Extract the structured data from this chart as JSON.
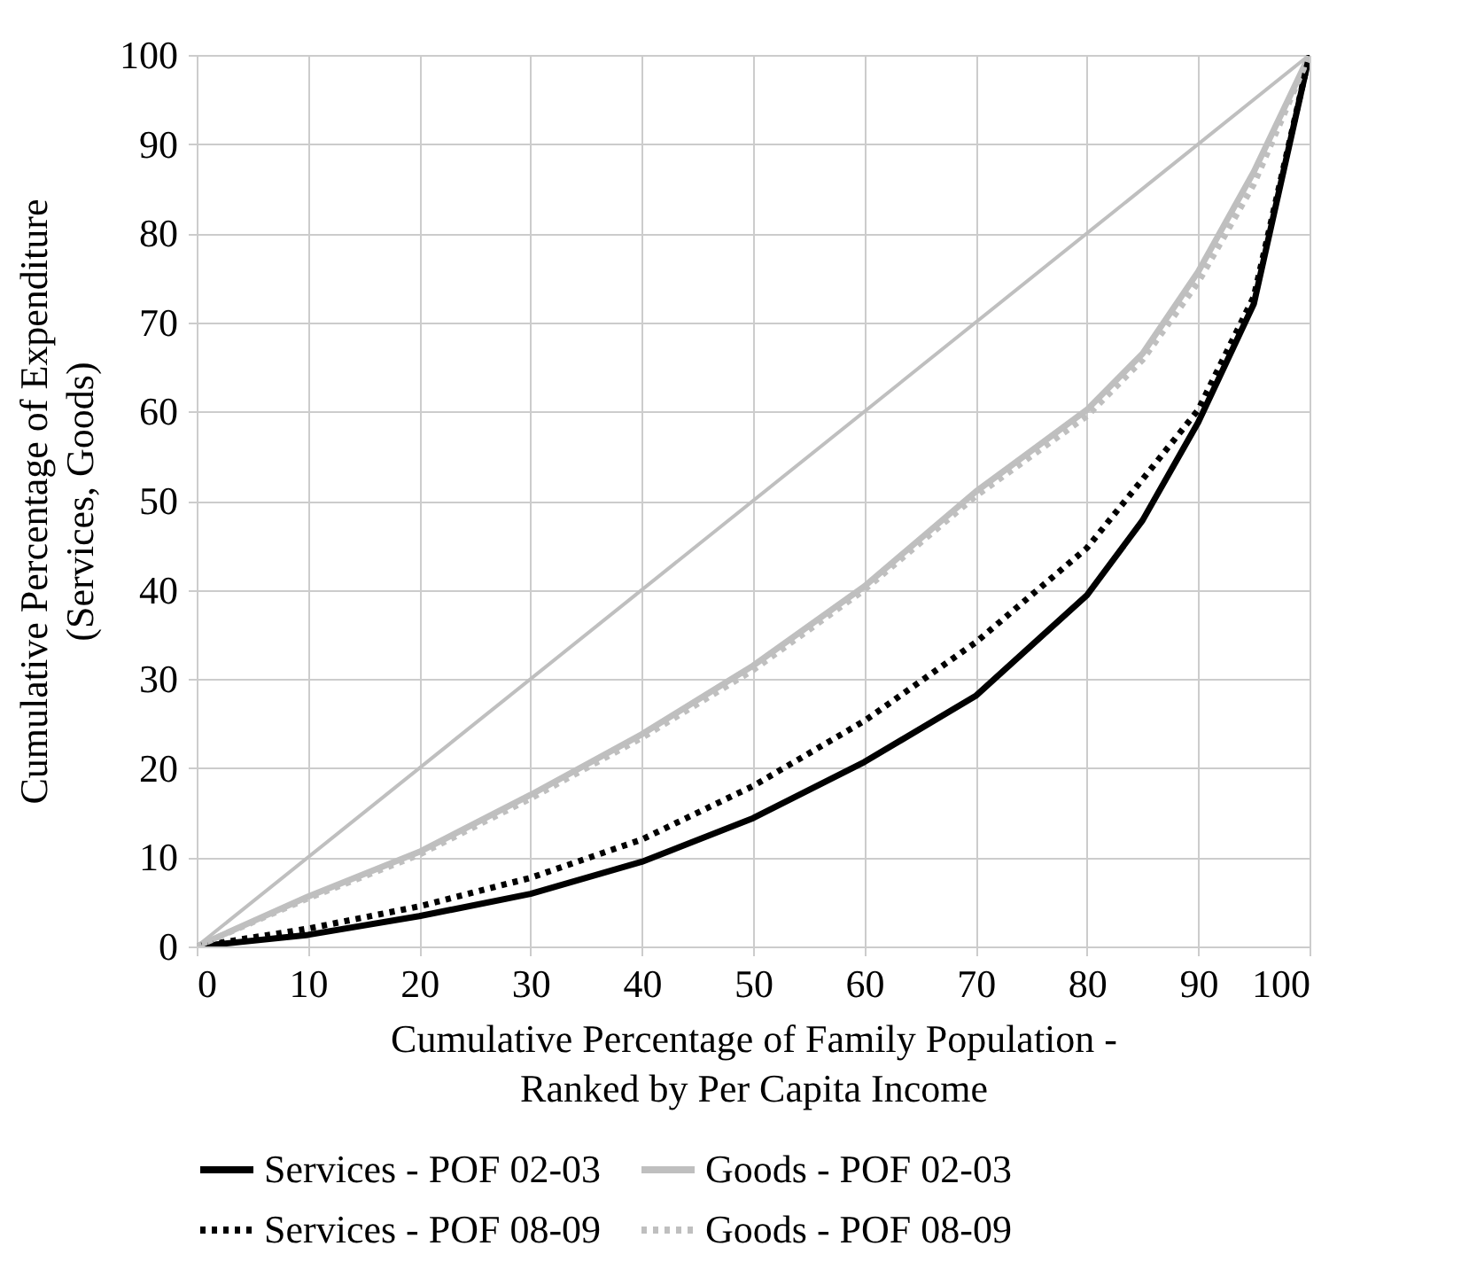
{
  "chart_data": {
    "type": "line",
    "xlabel": "Cumulative Percentage of Family Population - Ranked by Per Capita Income",
    "ylabel": "Cumulative Percentage of Expenditure (Services, Goods)",
    "x": [
      0,
      10,
      20,
      30,
      40,
      50,
      60,
      70,
      80,
      85,
      90,
      95,
      100
    ],
    "series": [
      {
        "name": "Services - POF 02-03",
        "color": "#000000",
        "line_style": "solid",
        "values": [
          0,
          1.3,
          3.4,
          5.9,
          9.5,
          14.4,
          20.7,
          28.1,
          39.4,
          47.8,
          58.8,
          72.1,
          100
        ]
      },
      {
        "name": "Goods - POF 02-03",
        "color": "#bfbfbf",
        "line_style": "solid",
        "values": [
          0,
          5.6,
          10.6,
          17.0,
          23.8,
          31.5,
          40.4,
          51.0,
          60.2,
          66.5,
          75.7,
          86.9,
          100
        ]
      },
      {
        "name": "Services - POF 08-09",
        "color": "#000000",
        "line_style": "dotted",
        "values": [
          0,
          2.0,
          4.5,
          7.7,
          12.0,
          18.0,
          25.3,
          34.1,
          44.7,
          52.4,
          60.2,
          72.9,
          100
        ]
      },
      {
        "name": "Goods - POF 08-09",
        "color": "#bfbfbf",
        "line_style": "dotted",
        "values": [
          0,
          5.4,
          10.3,
          16.6,
          23.4,
          31.0,
          40.0,
          50.5,
          59.5,
          65.8,
          74.5,
          85.5,
          100
        ]
      },
      {
        "color": "#bfbfbf",
        "line_style": "solid",
        "x": [
          0,
          100
        ],
        "values": [
          0,
          100
        ]
      }
    ],
    "xlim": [
      0,
      100
    ],
    "ylim": [
      0,
      100
    ],
    "xticks": [
      0,
      10,
      20,
      30,
      40,
      50,
      60,
      70,
      80,
      90,
      100
    ],
    "yticks": [
      0,
      10,
      20,
      30,
      40,
      50,
      60,
      70,
      80,
      90,
      100
    ],
    "grid": true,
    "legend": "bottom",
    "marker": "none"
  }
}
